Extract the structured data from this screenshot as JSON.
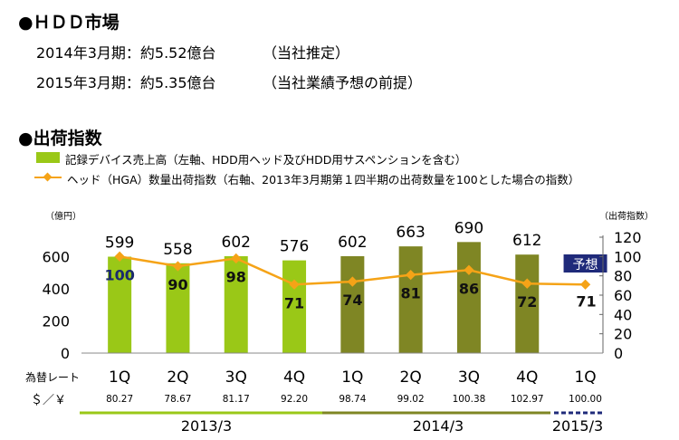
{
  "header": {
    "hdd_title": "●ＨＤＤ市場",
    "line1_label": "2014年3月期：約5.52億台",
    "line1_note": "（当社推定）",
    "line2_label": "2015年3月期：約5.35億台",
    "line2_note": "（当社業績予想の前提）",
    "shipment_title": "●出荷指数"
  },
  "legend": {
    "bar_label": "記録デバイス売上高（左軸、HDD用ヘッド及びHDD用サスペンションを含む）",
    "line_label": "ヘッド（HGA）数量出荷指数（右軸、2013年3月期第１四半期の出荷数量を100とした場合の指数）"
  },
  "colors": {
    "bar_light": "#9ac817",
    "bar_dark": "#7f8624",
    "line": "#f5a317",
    "index_label_first": "#1a2a6c",
    "forecast_badge": "#1f2a7a"
  },
  "chart_data": {
    "type": "bar",
    "categories": [
      "1Q",
      "2Q",
      "3Q",
      "4Q",
      "1Q",
      "2Q",
      "3Q",
      "4Q",
      "1Q"
    ],
    "series": [
      {
        "name": "記録デバイス売上高（左軸、HDD用ヘッド及びHDD用サスペンションを含む）",
        "type": "bar",
        "axis": "left",
        "values": [
          599,
          558,
          602,
          576,
          602,
          663,
          690,
          612,
          null
        ],
        "colors": [
          "#9ac817",
          "#9ac817",
          "#9ac817",
          "#9ac817",
          "#7f8624",
          "#7f8624",
          "#7f8624",
          "#7f8624",
          null
        ]
      },
      {
        "name": "ヘッド（HGA）数量出荷指数（右軸、2013年3月期第１四半期の出荷数量を100とした場合の指数）",
        "type": "line",
        "axis": "right",
        "values": [
          100,
          90,
          98,
          71,
          74,
          81,
          86,
          72,
          71
        ]
      }
    ],
    "y_left": {
      "unit_label": "（億円）",
      "ticks": [
        "0",
        "200",
        "400",
        "600"
      ],
      "range": [
        0,
        720
      ]
    },
    "y_right": {
      "unit_label": "（出荷指数）",
      "ticks": [
        "0",
        "20",
        "40",
        "60",
        "80",
        "100",
        "120"
      ],
      "range": [
        0,
        120
      ]
    },
    "forecast_label": "予想",
    "exchange_rate": {
      "label": "為替レート",
      "unit": "＄／￥",
      "values": [
        "80.27",
        "78.67",
        "81.17",
        "92.20",
        "98.74",
        "99.02",
        "100.38",
        "102.97",
        "100.00"
      ]
    },
    "fiscal_years": [
      "2013/3",
      "2014/3",
      "2015/3"
    ]
  }
}
